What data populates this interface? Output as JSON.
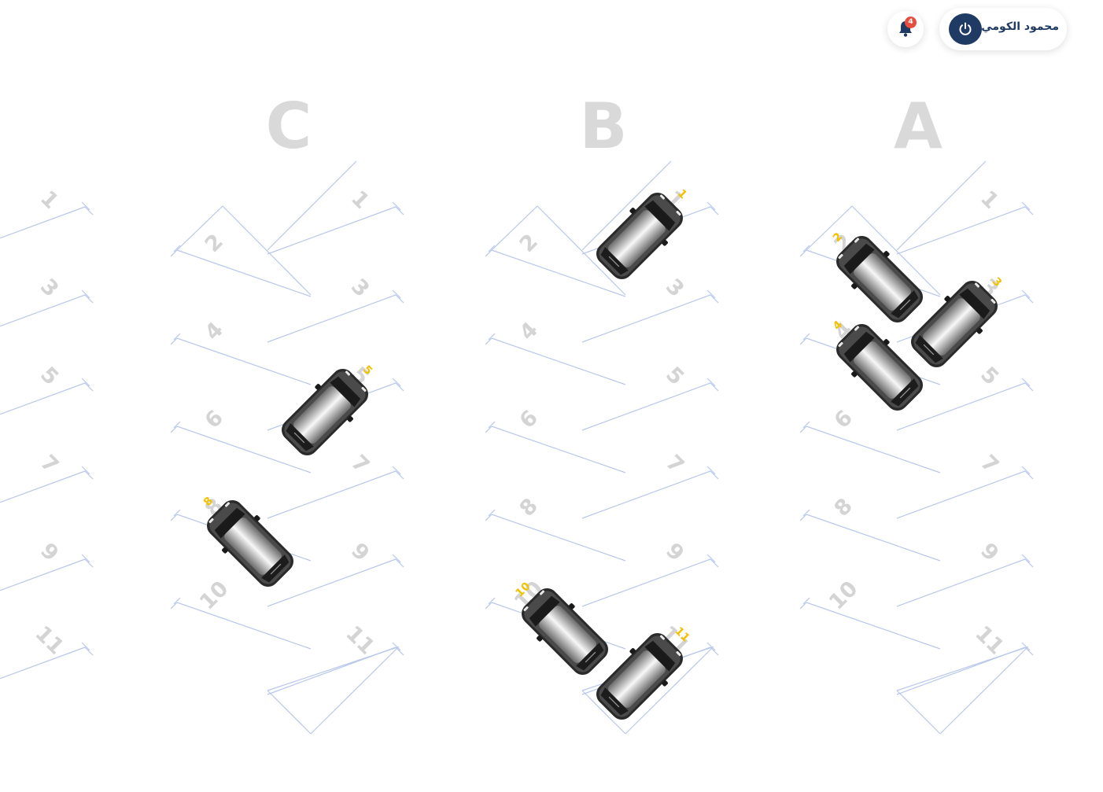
{
  "header": {
    "user_name": "محمود الكومي",
    "power_icon": "power-icon",
    "bell_icon": "bell-icon",
    "notification_count": "4",
    "badge_color": "#e74c3c",
    "accent_color": "#1f3b63"
  },
  "lot": {
    "line_color": "#b8c7ea",
    "number_color": "#d4d4d4",
    "title_color": "#d9d9d9",
    "car_number_color": "#f2c100",
    "sections": [
      {
        "id": "partial",
        "title": "",
        "slots": [
          {
            "num": "1"
          },
          {
            "num": "3"
          },
          {
            "num": "5"
          },
          {
            "num": "7"
          },
          {
            "num": "9"
          },
          {
            "num": "11"
          }
        ],
        "occupied": []
      },
      {
        "id": "C",
        "title": "C",
        "slots": [
          {
            "num": "1"
          },
          {
            "num": "2"
          },
          {
            "num": "3"
          },
          {
            "num": "4"
          },
          {
            "num": "5"
          },
          {
            "num": "6"
          },
          {
            "num": "7"
          },
          {
            "num": "8"
          },
          {
            "num": "9"
          },
          {
            "num": "10"
          },
          {
            "num": "11"
          }
        ],
        "occupied": [
          "5",
          "8"
        ]
      },
      {
        "id": "B",
        "title": "B",
        "slots": [
          {
            "num": "1"
          },
          {
            "num": "2"
          },
          {
            "num": "3"
          },
          {
            "num": "4"
          },
          {
            "num": "5"
          },
          {
            "num": "6"
          },
          {
            "num": "7"
          },
          {
            "num": "8"
          },
          {
            "num": "9"
          },
          {
            "num": "10"
          },
          {
            "num": "11"
          }
        ],
        "occupied": [
          "1",
          "10",
          "11"
        ]
      },
      {
        "id": "A",
        "title": "A",
        "slots": [
          {
            "num": "1"
          },
          {
            "num": "2"
          },
          {
            "num": "3"
          },
          {
            "num": "4"
          },
          {
            "num": "5"
          },
          {
            "num": "6"
          },
          {
            "num": "7"
          },
          {
            "num": "8"
          },
          {
            "num": "9"
          },
          {
            "num": "10"
          },
          {
            "num": "11"
          }
        ],
        "occupied": [
          "2",
          "3",
          "4"
        ]
      }
    ]
  }
}
